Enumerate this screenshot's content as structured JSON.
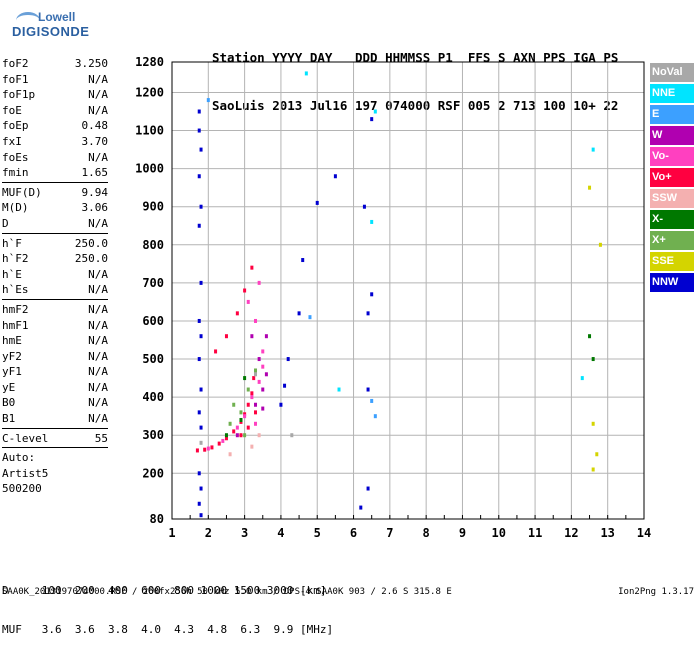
{
  "logo": {
    "line1": "Lowell",
    "line2": "DIGISONDE"
  },
  "header": {
    "row1": "Station YYYY DAY   DDD HHMMSS P1  FFS S AXN PPS IGA PS",
    "row2": "SaoLuis 2013 Jul16 197 074000 RSF 005 2 713 100 10+ 22"
  },
  "params": [
    {
      "name": "foF2",
      "value": "3.250"
    },
    {
      "name": "foF1",
      "value": "N/A"
    },
    {
      "name": "foF1p",
      "value": "N/A"
    },
    {
      "name": "foE",
      "value": "N/A"
    },
    {
      "name": "foEp",
      "value": "0.48"
    },
    {
      "name": "fxI",
      "value": "3.70"
    },
    {
      "name": "foEs",
      "value": "N/A"
    },
    {
      "name": "fmin",
      "value": "1.65"
    },
    {
      "sep": true
    },
    {
      "name": "MUF(D)",
      "value": "9.94"
    },
    {
      "name": "M(D)",
      "value": "3.06"
    },
    {
      "name": "D",
      "value": "N/A"
    },
    {
      "sep": true
    },
    {
      "name": "h`F",
      "value": "250.0"
    },
    {
      "name": "h`F2",
      "value": "250.0"
    },
    {
      "name": "h`E",
      "value": "N/A"
    },
    {
      "name": "h`Es",
      "value": "N/A"
    },
    {
      "sep": true
    },
    {
      "name": "hmF2",
      "value": "N/A"
    },
    {
      "name": "hmF1",
      "value": "N/A"
    },
    {
      "name": "hmE",
      "value": "N/A"
    },
    {
      "name": "yF2",
      "value": "N/A"
    },
    {
      "name": "yF1",
      "value": "N/A"
    },
    {
      "name": "yE",
      "value": "N/A"
    },
    {
      "name": "B0",
      "value": "N/A"
    },
    {
      "name": "B1",
      "value": "N/A"
    },
    {
      "sep": true
    },
    {
      "name": "C-level",
      "value": "55"
    },
    {
      "sep": true
    },
    {
      "name": "Auto:",
      "value": ""
    },
    {
      "name": "Artist5",
      "value": ""
    },
    {
      "name": "500200",
      "value": ""
    }
  ],
  "legend": [
    {
      "label": "NoVal",
      "color": "#a8a8a8"
    },
    {
      "label": "NNE",
      "color": "#00e4ff"
    },
    {
      "label": "E",
      "color": "#3ca0ff"
    },
    {
      "label": "W",
      "color": "#b000b0"
    },
    {
      "label": "Vo-",
      "color": "#ff40c0"
    },
    {
      "label": "Vo+",
      "color": "#ff0040"
    },
    {
      "label": "SSW",
      "color": "#f4b0b0"
    },
    {
      "label": "X-",
      "color": "#007800"
    },
    {
      "label": "X+",
      "color": "#70b050"
    },
    {
      "label": "SSE",
      "color": "#d4d400"
    },
    {
      "label": "NNW",
      "color": "#0000d0"
    }
  ],
  "bottom": {
    "row1": "D     100  200  400  600  800 1000 1500 3000 [km]",
    "row2": "MUF   3.6  3.6  3.8  4.0  4.3  4.8  6.3  9.9 [MHz]"
  },
  "footer": {
    "left": "SAA0K_2013197074000.RSF / 260fx256h 50 kHz 5.0 km / DPS-4 SAA0K 903 / 2.6 S 315.8 E",
    "right": "Ion2Png 1.3.17"
  },
  "chart_data": {
    "type": "scatter",
    "title": "",
    "xlabel": "",
    "ylabel": "",
    "xlim": [
      1,
      14
    ],
    "ylim": [
      80,
      1280
    ],
    "x_ticks": [
      1,
      2,
      3,
      4,
      5,
      6,
      7,
      8,
      9,
      10,
      11,
      12,
      13,
      14
    ],
    "y_ticks": [
      80,
      200,
      300,
      400,
      500,
      600,
      700,
      800,
      900,
      1000,
      1100,
      1200,
      1280
    ],
    "grid": true,
    "legend_position": "right",
    "series": [
      {
        "name": "Vo+",
        "color": "#ff0040",
        "points": [
          [
            1.7,
            260
          ],
          [
            1.9,
            262
          ],
          [
            2.1,
            268
          ],
          [
            2.3,
            278
          ],
          [
            2.5,
            292
          ],
          [
            2.7,
            310
          ],
          [
            2.9,
            335
          ],
          [
            3.0,
            355
          ],
          [
            3.1,
            380
          ],
          [
            3.2,
            410
          ],
          [
            3.25,
            450
          ],
          [
            2.2,
            520
          ],
          [
            2.5,
            560
          ],
          [
            2.8,
            620
          ],
          [
            3.0,
            680
          ],
          [
            3.2,
            740
          ],
          [
            2.9,
            300
          ],
          [
            3.1,
            320
          ],
          [
            3.3,
            360
          ]
        ]
      },
      {
        "name": "Vo-",
        "color": "#ff40c0",
        "points": [
          [
            2.0,
            265
          ],
          [
            2.4,
            285
          ],
          [
            2.8,
            320
          ],
          [
            3.0,
            350
          ],
          [
            3.2,
            400
          ],
          [
            3.4,
            440
          ],
          [
            3.5,
            480
          ],
          [
            3.3,
            600
          ],
          [
            3.4,
            700
          ],
          [
            3.1,
            650
          ],
          [
            3.5,
            520
          ],
          [
            3.3,
            330
          ]
        ]
      },
      {
        "name": "W",
        "color": "#b000b0",
        "points": [
          [
            3.3,
            380
          ],
          [
            3.5,
            420
          ],
          [
            3.6,
            460
          ],
          [
            3.4,
            500
          ],
          [
            3.6,
            560
          ],
          [
            3.2,
            560
          ],
          [
            3.5,
            370
          ],
          [
            2.8,
            300
          ]
        ]
      },
      {
        "name": "X+",
        "color": "#70b050",
        "points": [
          [
            2.6,
            330
          ],
          [
            2.9,
            360
          ],
          [
            3.1,
            420
          ],
          [
            3.3,
            470
          ],
          [
            3.0,
            300
          ],
          [
            2.7,
            380
          ]
        ]
      },
      {
        "name": "X-",
        "color": "#007800",
        "points": [
          [
            2.5,
            300
          ],
          [
            2.9,
            340
          ],
          [
            3.0,
            450
          ],
          [
            12.6,
            500
          ],
          [
            12.5,
            560
          ]
        ]
      },
      {
        "name": "NNW",
        "color": "#0000d0",
        "points": [
          [
            1.75,
            1150
          ],
          [
            1.75,
            1100
          ],
          [
            1.8,
            1050
          ],
          [
            1.75,
            980
          ],
          [
            1.8,
            900
          ],
          [
            1.75,
            850
          ],
          [
            1.8,
            700
          ],
          [
            1.75,
            600
          ],
          [
            1.8,
            560
          ],
          [
            1.75,
            500
          ],
          [
            1.8,
            420
          ],
          [
            1.75,
            360
          ],
          [
            1.8,
            320
          ],
          [
            1.75,
            200
          ],
          [
            1.8,
            160
          ],
          [
            1.75,
            120
          ],
          [
            1.8,
            90
          ],
          [
            4.1,
            430
          ],
          [
            4.0,
            380
          ],
          [
            4.2,
            500
          ],
          [
            4.5,
            620
          ],
          [
            4.6,
            760
          ],
          [
            5.0,
            910
          ],
          [
            5.5,
            980
          ],
          [
            6.3,
            900
          ],
          [
            6.4,
            420
          ],
          [
            6.4,
            160
          ],
          [
            6.2,
            110
          ],
          [
            6.4,
            620
          ],
          [
            6.5,
            670
          ],
          [
            6.5,
            1130
          ]
        ]
      },
      {
        "name": "NNE",
        "color": "#00e4ff",
        "points": [
          [
            5.6,
            420
          ],
          [
            6.5,
            860
          ],
          [
            6.6,
            1150
          ],
          [
            12.3,
            450
          ],
          [
            4.7,
            1250
          ],
          [
            12.6,
            1050
          ]
        ]
      },
      {
        "name": "E",
        "color": "#3ca0ff",
        "points": [
          [
            2.0,
            1180
          ],
          [
            4.8,
            610
          ],
          [
            6.5,
            390
          ],
          [
            6.6,
            350
          ]
        ]
      },
      {
        "name": "SSE",
        "color": "#d4d400",
        "points": [
          [
            12.6,
            330
          ],
          [
            12.7,
            250
          ],
          [
            12.5,
            950
          ],
          [
            12.8,
            800
          ],
          [
            12.6,
            210
          ]
        ]
      },
      {
        "name": "SSW",
        "color": "#f4b0b0",
        "points": [
          [
            3.4,
            300
          ],
          [
            3.2,
            270
          ],
          [
            2.6,
            250
          ]
        ]
      },
      {
        "name": "NoVal",
        "color": "#a8a8a8",
        "points": [
          [
            1.8,
            280
          ],
          [
            3.3,
            460
          ],
          [
            4.3,
            300
          ]
        ]
      }
    ]
  }
}
